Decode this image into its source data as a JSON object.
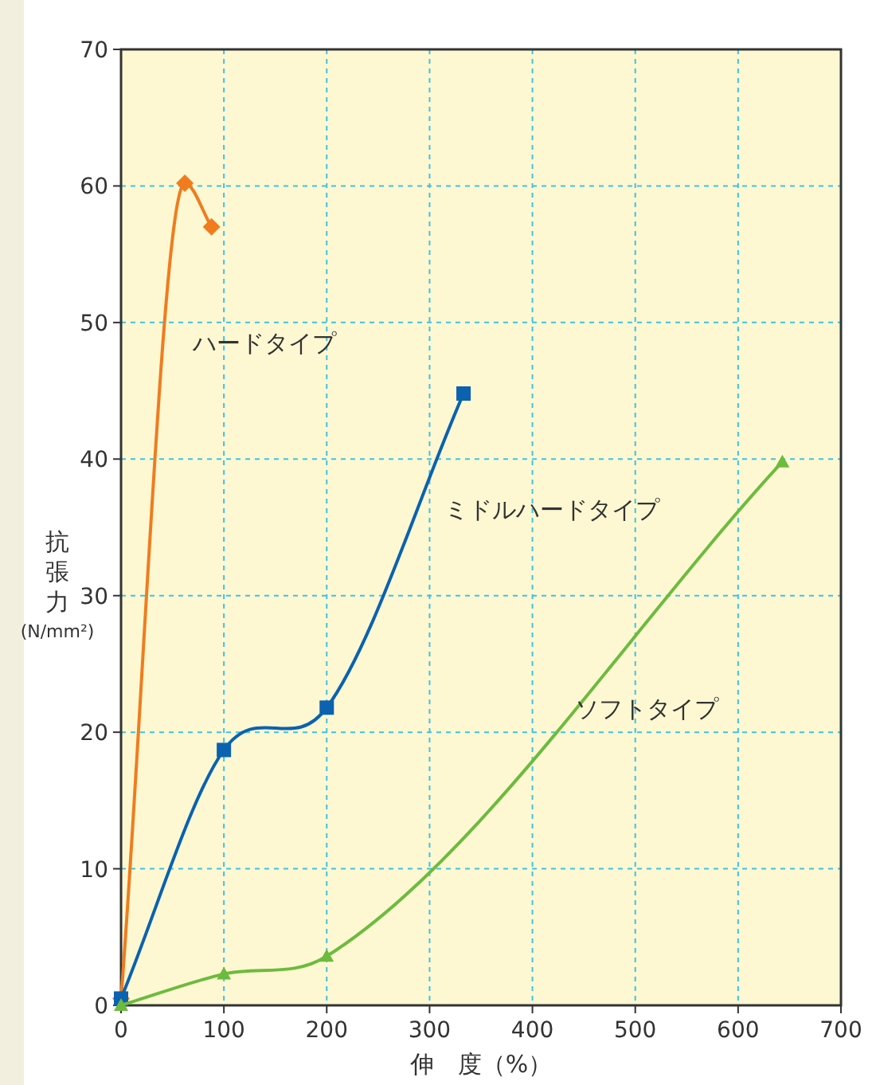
{
  "chart_data": {
    "type": "line",
    "xlabel": "伸　度（%）",
    "ylabel": "抗張力 (N/mm²)",
    "xlim": [
      0,
      700
    ],
    "xticks": [
      0,
      100,
      200,
      300,
      400,
      500,
      600,
      700
    ],
    "ylim": [
      0,
      70
    ],
    "yticks": [
      0,
      10,
      20,
      30,
      40,
      50,
      60,
      70
    ],
    "grid": true,
    "line_style": "solid",
    "series": [
      {
        "name": "ハードタイプ",
        "color": "#f07c1e",
        "marker": "diamond",
        "x": [
          0,
          62,
          88
        ],
        "values": [
          0.5,
          60.2,
          57
        ]
      },
      {
        "name": "ミドルハードタイプ",
        "color": "#0a62b0",
        "marker": "square",
        "x": [
          0,
          100,
          200,
          333
        ],
        "values": [
          0.5,
          18.7,
          21.8,
          44.8
        ]
      },
      {
        "name": "ソフトタイプ",
        "color": "#6dbb3e",
        "marker": "triangle",
        "x": [
          0,
          100,
          200,
          643
        ],
        "values": [
          0,
          2.3,
          3.6,
          39.8
        ]
      }
    ]
  }
}
